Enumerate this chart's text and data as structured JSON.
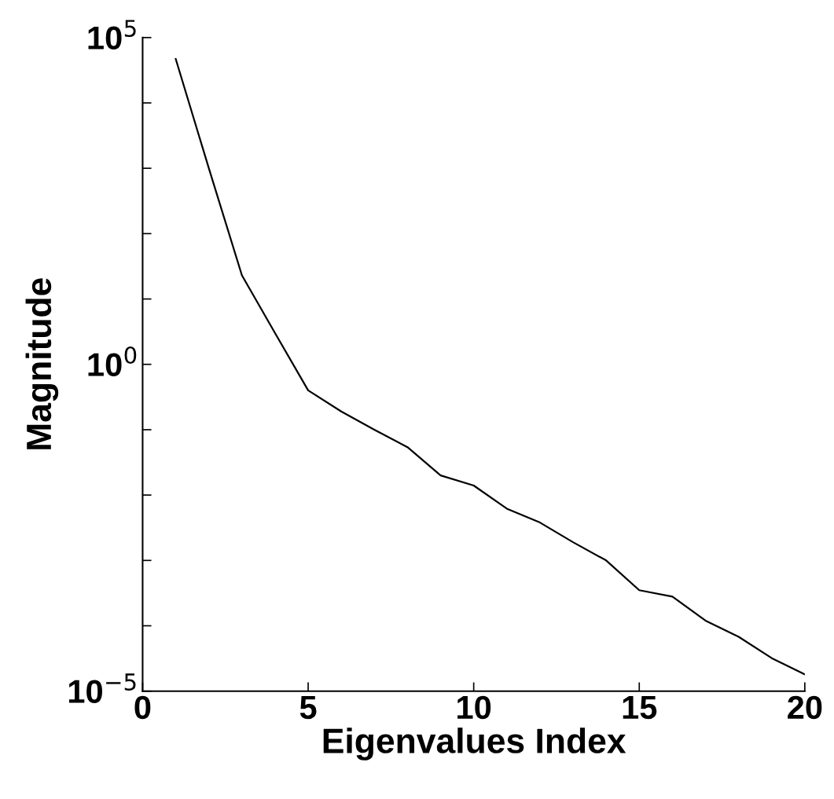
{
  "chart_data": {
    "type": "line",
    "xlabel": "Eigenvalues Index",
    "ylabel": "Magnitude",
    "x": [
      1,
      2,
      3,
      4,
      5,
      6,
      7,
      8,
      9,
      10,
      11,
      12,
      13,
      14,
      15,
      16,
      17,
      18,
      19,
      20
    ],
    "series": [
      {
        "color": "#000000",
        "values": [
          47000,
          1000,
          23,
          3.0,
          0.4,
          0.19,
          0.1,
          0.054,
          0.02,
          0.014,
          0.0062,
          0.0038,
          0.0019,
          0.001,
          0.00035,
          0.00028,
          0.00012,
          6.8e-05,
          3.2e-05,
          1.8e-05
        ]
      }
    ],
    "log": "y",
    "xlim": [
      0,
      20
    ],
    "xticks": [
      0,
      5,
      10,
      15,
      20
    ],
    "ylim": [
      1e-05,
      100000
    ],
    "yticks": [
      {
        "value": 1e-05,
        "label": "10$^{−5}$"
      },
      {
        "value": 0.0001,
        "label": null
      },
      {
        "value": 0.001,
        "label": null
      },
      {
        "value": 0.01,
        "label": null
      },
      {
        "value": 0.1,
        "label": null
      },
      {
        "value": 1,
        "label": "10$^{0}$"
      },
      {
        "value": 10,
        "label": null
      },
      {
        "value": 100,
        "label": null
      },
      {
        "value": 1000,
        "label": null
      },
      {
        "value": 10000,
        "label": null
      },
      {
        "value": 100000,
        "label": "10$^{5}$"
      }
    ],
    "grid": false,
    "marker": "none",
    "line_style": "solid"
  }
}
